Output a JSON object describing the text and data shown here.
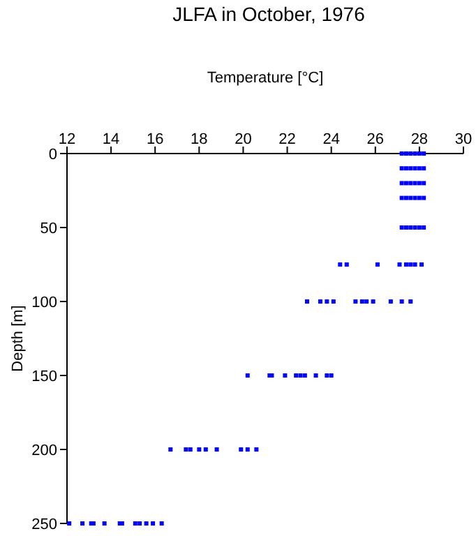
{
  "chart_data": {
    "type": "scatter",
    "title": "JLFA in October, 1976",
    "xlabel": "Temperature [°C]",
    "ylabel": "Depth [m]",
    "xlim": [
      12,
      30
    ],
    "xticks": [
      12,
      14,
      16,
      18,
      20,
      22,
      24,
      26,
      28,
      30
    ],
    "ylim": [
      250,
      0
    ],
    "yticks": [
      0,
      50,
      100,
      150,
      200,
      250
    ],
    "grid": false,
    "legend": false,
    "marker": "square",
    "series": [
      {
        "color": "#0000ff",
        "x": [
          27.2,
          27.4,
          27.6,
          27.8,
          28.0,
          28.2,
          27.2,
          27.4,
          27.6,
          27.8,
          28.0,
          28.2,
          27.2,
          27.4,
          27.6,
          27.8,
          28.0,
          28.2,
          27.2,
          27.4,
          27.6,
          27.8,
          28.0,
          28.2,
          27.2,
          27.4,
          27.6,
          27.8,
          28.0,
          28.2,
          24.4,
          24.7,
          26.1,
          27.1,
          27.4,
          27.6,
          27.8,
          28.1,
          22.9,
          23.5,
          23.8,
          24.1,
          25.1,
          25.4,
          25.6,
          25.9,
          26.7,
          27.2,
          27.6,
          20.2,
          21.2,
          21.3,
          21.9,
          22.4,
          22.6,
          22.8,
          23.3,
          23.8,
          24.0,
          16.7,
          17.4,
          17.6,
          18.0,
          18.3,
          18.8,
          19.9,
          20.2,
          20.6,
          12.1,
          12.7,
          13.1,
          13.2,
          13.7,
          14.4,
          14.5,
          15.1,
          15.3,
          15.6,
          15.9,
          16.3
        ],
        "values": [
          0,
          0,
          0,
          0,
          0,
          0,
          10,
          10,
          10,
          10,
          10,
          10,
          20,
          20,
          20,
          20,
          20,
          20,
          30,
          30,
          30,
          30,
          30,
          30,
          50,
          50,
          50,
          50,
          50,
          50,
          75,
          75,
          75,
          75,
          75,
          75,
          75,
          75,
          100,
          100,
          100,
          100,
          100,
          100,
          100,
          100,
          100,
          100,
          100,
          150,
          150,
          150,
          150,
          150,
          150,
          150,
          150,
          150,
          150,
          200,
          200,
          200,
          200,
          200,
          200,
          200,
          200,
          200,
          250,
          250,
          250,
          250,
          250,
          250,
          250,
          250,
          250,
          250,
          250,
          250
        ]
      }
    ]
  }
}
